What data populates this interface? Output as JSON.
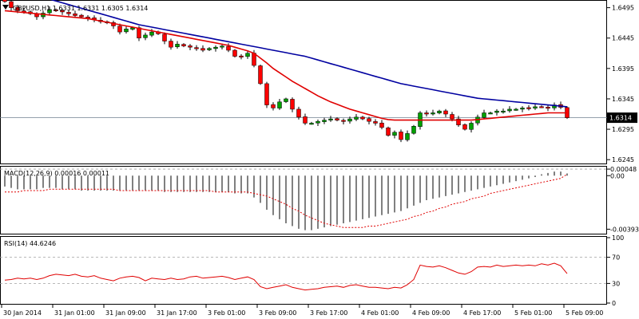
{
  "chart_data": [
    {
      "type": "candlestick",
      "title": "GBPUSD,H1  1.6331 1.6331 1.6305 1.6314",
      "symbol": "GBPUSD",
      "timeframe": "H1",
      "last_ohlc": [
        1.6331,
        1.6331,
        1.6305,
        1.6314
      ],
      "current_price_label": "1.6314",
      "current_price": 1.6314,
      "ylim": [
        1.624,
        1.6505
      ],
      "y_ticks": [
        "1.6495",
        "1.6445",
        "1.6395",
        "1.6345",
        "1.6295",
        "1.6245"
      ],
      "y_tick_values": [
        1.6495,
        1.6445,
        1.6395,
        1.6345,
        1.6295,
        1.6245
      ],
      "x_ticks": [
        "30 Jan 2014",
        "31 Jan 01:00",
        "31 Jan 09:00",
        "31 Jan 17:00",
        "3 Feb 01:00",
        "3 Feb 09:00",
        "3 Feb 17:00",
        "4 Feb 01:00",
        "4 Feb 09:00",
        "4 Feb 17:00",
        "5 Feb 01:00",
        "5 Feb 09:00"
      ],
      "x_tick_index": [
        0,
        8,
        16,
        24,
        32,
        40,
        48,
        56,
        64,
        72,
        80,
        88
      ],
      "bull_color": "#00a000",
      "bear_color": "#ff0000",
      "close": [
        1.6505,
        1.6495,
        1.649,
        1.6488,
        1.6485,
        1.648,
        1.6486,
        1.6492,
        1.649,
        1.6488,
        1.6485,
        1.6482,
        1.648,
        1.6478,
        1.6475,
        1.6472,
        1.647,
        1.6465,
        1.6455,
        1.646,
        1.6462,
        1.6445,
        1.645,
        1.6455,
        1.6452,
        1.644,
        1.643,
        1.6435,
        1.6432,
        1.643,
        1.6428,
        1.6425,
        1.6428,
        1.643,
        1.6432,
        1.6425,
        1.6415,
        1.6415,
        1.642,
        1.64,
        1.637,
        1.6335,
        1.633,
        1.634,
        1.6345,
        1.6328,
        1.6315,
        1.6305,
        1.6305,
        1.6308,
        1.631,
        1.6312,
        1.631,
        1.6308,
        1.6312,
        1.6315,
        1.6312,
        1.6308,
        1.6305,
        1.6298,
        1.6285,
        1.629,
        1.6278,
        1.6288,
        1.63,
        1.6322,
        1.632,
        1.6322,
        1.6325,
        1.632,
        1.6312,
        1.6302,
        1.6295,
        1.6305,
        1.6315,
        1.6322,
        1.6322,
        1.6325,
        1.6325,
        1.6328,
        1.6328,
        1.633,
        1.633,
        1.6332,
        1.6332,
        1.633,
        1.6335,
        1.6331,
        1.6314
      ],
      "series": [
        {
          "name": "SMA slow",
          "color": "#0000a0",
          "values": [
            1.653,
            1.6527,
            1.6524,
            1.6521,
            1.6518,
            1.6515,
            1.6512,
            1.6509,
            1.6506,
            1.6503,
            1.65,
            1.6497,
            1.6494,
            1.6491,
            1.6488,
            1.6485,
            1.6482,
            1.6479,
            1.6476,
            1.6473,
            1.647,
            1.6467,
            1.6465,
            1.6463,
            1.6461,
            1.6459,
            1.6457,
            1.6455,
            1.6453,
            1.6451,
            1.6449,
            1.6447,
            1.6445,
            1.6443,
            1.6441,
            1.6439,
            1.6437,
            1.6435,
            1.6433,
            1.6431,
            1.6429,
            1.6427,
            1.6425,
            1.6423,
            1.6421,
            1.6419,
            1.6417,
            1.6415,
            1.6412,
            1.6409,
            1.6406,
            1.6403,
            1.64,
            1.6397,
            1.6394,
            1.6391,
            1.6388,
            1.6385,
            1.6382,
            1.6379,
            1.6376,
            1.6373,
            1.637,
            1.6368,
            1.6366,
            1.6364,
            1.6362,
            1.636,
            1.6358,
            1.6356,
            1.6354,
            1.6352,
            1.635,
            1.6348,
            1.6346,
            1.6345,
            1.6344,
            1.6343,
            1.6342,
            1.6341,
            1.634,
            1.6339,
            1.6338,
            1.6337,
            1.6336,
            1.6335,
            1.6334,
            1.6333,
            1.6332
          ]
        },
        {
          "name": "SMA fast",
          "color": "#e00000",
          "values": [
            1.649,
            1.6489,
            1.6488,
            1.6487,
            1.6486,
            1.6485,
            1.6484,
            1.6483,
            1.6482,
            1.6481,
            1.648,
            1.6479,
            1.6478,
            1.6477,
            1.6475,
            1.6473,
            1.6471,
            1.6469,
            1.6467,
            1.6465,
            1.6463,
            1.6461,
            1.6459,
            1.6457,
            1.6455,
            1.6453,
            1.6451,
            1.6449,
            1.6447,
            1.6445,
            1.6443,
            1.6441,
            1.6439,
            1.6437,
            1.6435,
            1.6433,
            1.643,
            1.6427,
            1.6424,
            1.642,
            1.6412,
            1.6404,
            1.6395,
            1.6388,
            1.6381,
            1.6374,
            1.6368,
            1.6362,
            1.6356,
            1.635,
            1.6345,
            1.634,
            1.6336,
            1.6332,
            1.6328,
            1.6325,
            1.6322,
            1.6319,
            1.6316,
            1.6313,
            1.6311,
            1.631,
            1.631,
            1.631,
            1.631,
            1.631,
            1.631,
            1.631,
            1.631,
            1.631,
            1.631,
            1.631,
            1.631,
            1.631,
            1.6311,
            1.6312,
            1.6313,
            1.6314,
            1.6315,
            1.6316,
            1.6317,
            1.6318,
            1.6319,
            1.632,
            1.6321,
            1.6322,
            1.6322,
            1.6322,
            1.6322
          ]
        }
      ]
    },
    {
      "type": "histogram",
      "title": "MACD(12,26,9) 0.00016 0.00011",
      "indicator": "MACD",
      "params": "12,26,9",
      "values_label": "0.00016 0.00011",
      "ylim": [
        -0.0042,
        0.0006
      ],
      "y_ticks": [
        "0.00048",
        "0.00",
        "-0.00393"
      ],
      "y_tick_values": [
        0.00048,
        0.0,
        -0.00393
      ],
      "bar_color": "#000000",
      "signal_color": "#e00000",
      "histogram": [
        -0.0008,
        -0.0009,
        -0.001,
        -0.001,
        -0.001,
        -0.001,
        -0.0009,
        -0.0009,
        -0.0009,
        -0.001,
        -0.001,
        -0.001,
        -0.0011,
        -0.0011,
        -0.0011,
        -0.0011,
        -0.0011,
        -0.0011,
        -0.0011,
        -0.0011,
        -0.0011,
        -0.0011,
        -0.0011,
        -0.0011,
        -0.0011,
        -0.0012,
        -0.0012,
        -0.0012,
        -0.0012,
        -0.0012,
        -0.0012,
        -0.0012,
        -0.0012,
        -0.0012,
        -0.0012,
        -0.0012,
        -0.0013,
        -0.0013,
        -0.0013,
        -0.0016,
        -0.002,
        -0.0025,
        -0.0029,
        -0.0032,
        -0.0035,
        -0.0037,
        -0.0039,
        -0.004,
        -0.004,
        -0.0039,
        -0.0038,
        -0.0037,
        -0.0036,
        -0.0035,
        -0.0034,
        -0.0033,
        -0.0032,
        -0.0031,
        -0.003,
        -0.0029,
        -0.0028,
        -0.0027,
        -0.0026,
        -0.0024,
        -0.0022,
        -0.002,
        -0.0018,
        -0.0017,
        -0.0016,
        -0.0015,
        -0.0014,
        -0.0013,
        -0.0012,
        -0.0011,
        -0.001,
        -0.0009,
        -0.0008,
        -0.0007,
        -0.0006,
        -0.0005,
        -0.0004,
        -0.0003,
        -0.0002,
        -0.0001,
        0.0001,
        0.0002,
        0.0003,
        0.0003,
        0.00016
      ],
      "signal": [
        -0.0012,
        -0.0012,
        -0.0012,
        -0.0011,
        -0.0011,
        -0.0011,
        -0.0011,
        -0.001,
        -0.001,
        -0.001,
        -0.001,
        -0.001,
        -0.001,
        -0.001,
        -0.001,
        -0.001,
        -0.001,
        -0.001,
        -0.0011,
        -0.0011,
        -0.0011,
        -0.0011,
        -0.0011,
        -0.0011,
        -0.0011,
        -0.0011,
        -0.0011,
        -0.0011,
        -0.0011,
        -0.0011,
        -0.0011,
        -0.0011,
        -0.0011,
        -0.0012,
        -0.0012,
        -0.0012,
        -0.0012,
        -0.0012,
        -0.0012,
        -0.0013,
        -0.0014,
        -0.0015,
        -0.0017,
        -0.0019,
        -0.0021,
        -0.0024,
        -0.0026,
        -0.0029,
        -0.0031,
        -0.0033,
        -0.0035,
        -0.0036,
        -0.0037,
        -0.0038,
        -0.0038,
        -0.0038,
        -0.0038,
        -0.0037,
        -0.0037,
        -0.0036,
        -0.0035,
        -0.0034,
        -0.0033,
        -0.0032,
        -0.003,
        -0.0029,
        -0.0027,
        -0.0026,
        -0.0024,
        -0.0023,
        -0.0021,
        -0.002,
        -0.0019,
        -0.0017,
        -0.0016,
        -0.0015,
        -0.0013,
        -0.0012,
        -0.0011,
        -0.001,
        -0.0009,
        -0.0008,
        -0.0007,
        -0.0006,
        -0.0005,
        -0.0004,
        -0.0003,
        -0.0002,
        0.00011
      ]
    },
    {
      "type": "line",
      "title": "RSI(14) 44.6246",
      "indicator": "RSI",
      "params": "14",
      "value_label": "44.6246",
      "ylim": [
        0,
        100
      ],
      "y_ticks": [
        "100",
        "70",
        "30",
        "0"
      ],
      "y_tick_values": [
        100,
        70,
        30,
        0
      ],
      "levels": [
        70,
        30
      ],
      "line_color": "#e00000",
      "values": [
        35,
        36,
        38,
        37,
        38,
        36,
        38,
        42,
        44,
        43,
        42,
        44,
        41,
        40,
        42,
        38,
        36,
        34,
        38,
        40,
        41,
        39,
        34,
        38,
        37,
        36,
        38,
        36,
        37,
        40,
        41,
        38,
        39,
        40,
        41,
        39,
        36,
        38,
        40,
        36,
        25,
        22,
        24,
        26,
        28,
        24,
        22,
        20,
        21,
        22,
        24,
        25,
        26,
        24,
        27,
        28,
        26,
        24,
        24,
        23,
        22,
        24,
        23,
        28,
        36,
        58,
        56,
        55,
        57,
        54,
        50,
        46,
        44,
        48,
        55,
        56,
        55,
        58,
        56,
        57,
        58,
        57,
        58,
        57,
        60,
        58,
        61,
        57,
        45
      ]
    }
  ]
}
